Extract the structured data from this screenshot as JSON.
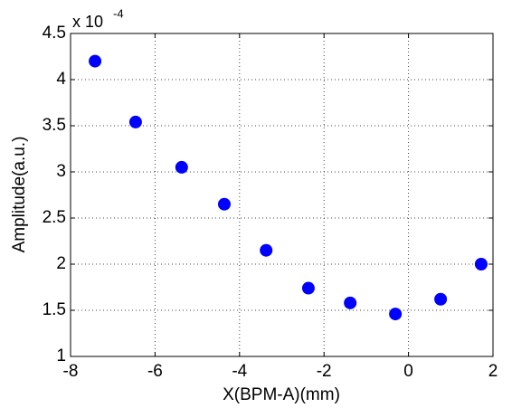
{
  "chart_data": {
    "type": "scatter",
    "x_label": "X(BPM-A)(mm)",
    "y_label": "Amplitude(a.u.)",
    "y_multiplier": "x 10",
    "y_exponent": "-4",
    "series": [
      {
        "color": "#0000ff",
        "x": [
          -7.42,
          -6.46,
          -5.37,
          -4.36,
          -3.37,
          -2.37,
          -1.38,
          -0.31,
          0.76,
          1.72
        ],
        "values": [
          4.2,
          3.54,
          3.05,
          2.65,
          2.15,
          1.74,
          1.58,
          1.46,
          1.62,
          2.0
        ]
      }
    ],
    "xlim": [
      -8,
      2
    ],
    "xticks": [
      -8,
      -6,
      -4,
      -2,
      0,
      2
    ],
    "ylim": [
      1,
      4.5
    ],
    "yticks": [
      1,
      1.5,
      2,
      2.5,
      3,
      3.5,
      4,
      4.5
    ],
    "grid": true
  }
}
